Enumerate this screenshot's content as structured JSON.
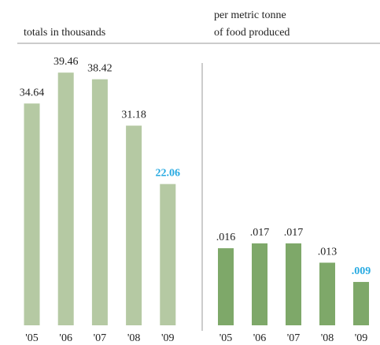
{
  "chart_data": [
    {
      "type": "bar",
      "title": [
        "totals in thousands"
      ],
      "categories": [
        "'05",
        "'06",
        "'07",
        "'08",
        "'09"
      ],
      "values": [
        34.64,
        39.46,
        38.42,
        31.18,
        22.06
      ],
      "color": "#b5c9a3",
      "label_colors": [
        "#222222",
        "#222222",
        "#222222",
        "#222222",
        "#29abe2"
      ],
      "ylim": [
        0,
        50
      ]
    },
    {
      "type": "bar",
      "title": [
        "per metric tonne",
        "of food produced"
      ],
      "categories": [
        "'05",
        "'06",
        "'07",
        "'08",
        "'09"
      ],
      "values": [
        0.016,
        0.017,
        0.017,
        0.013,
        0.009
      ],
      "value_labels": [
        ".016",
        ".017",
        ".017",
        ".013",
        ".009"
      ],
      "color": "#7ea869",
      "label_colors": [
        "#222222",
        "#222222",
        "#222222",
        "#222222",
        "#29abe2"
      ],
      "ylim": [
        0,
        0.06
      ]
    }
  ]
}
